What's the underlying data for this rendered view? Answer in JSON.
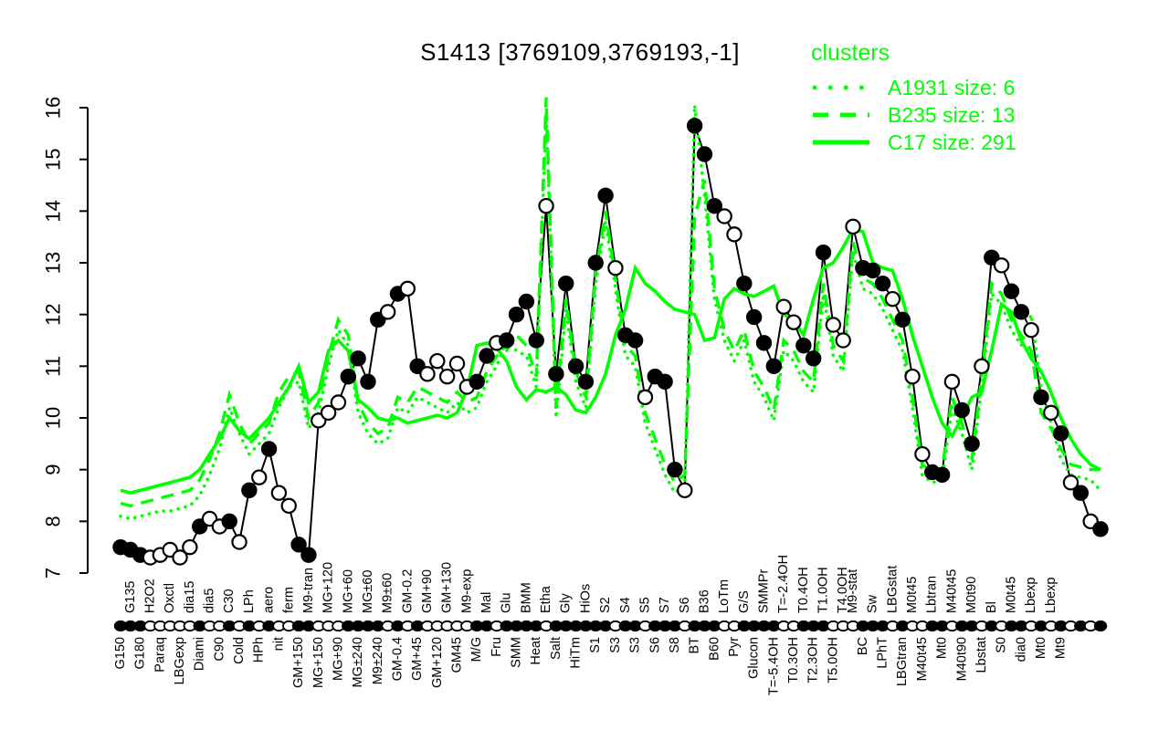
{
  "title": "S1413 [3769109,3769193,-1]",
  "colors": {
    "cluster_green": "#00FF00",
    "series_black": "#000000",
    "background": "#FFFFFF"
  },
  "legend": {
    "title": "clusters",
    "entries": [
      {
        "label": "A1931 size: 6",
        "line_style": "dotted"
      },
      {
        "label": "B235 size: 13",
        "line_style": "dashed"
      },
      {
        "label": "C17 size: 291",
        "line_style": "solid"
      }
    ]
  },
  "y_axis": {
    "min": 7,
    "max": 16,
    "ticks": [
      7,
      8,
      9,
      10,
      11,
      12,
      13,
      14,
      15,
      16
    ]
  },
  "chart_data": {
    "type": "line",
    "title": "S1413 [3769109,3769193,-1]",
    "ylim": [
      7,
      16.3
    ],
    "grid": false,
    "legend_position": "top-right",
    "categories": {
      "labels": [
        "G150",
        "G135",
        "G180",
        "H2O2",
        "Paraq",
        "Oxctl",
        "LBGexp",
        "dia15",
        "Diami",
        "dia5",
        "C90",
        "C30",
        "Cold",
        "LPh",
        "HPh",
        "aero",
        "nit",
        "ferm",
        "GM+150",
        "M9-tran",
        "MG+150",
        "MG+120",
        "MG+90",
        "MG+60",
        "MG±240",
        "MG±60",
        "M9±240",
        "M9±60",
        "GM-0.4",
        "GM-0.2",
        "GM+45",
        "GM+90",
        "GM+120",
        "GM+130",
        "GM45",
        "M9-exp",
        "M/G",
        "Mal",
        "Fru",
        "Glu",
        "SMM",
        "BMM",
        "Heat",
        "Etha",
        "Salt",
        "Gly",
        "HiTm",
        "HiOs",
        "S1",
        "S2",
        "S3",
        "S4",
        "S3",
        "S5",
        "S6",
        "S7",
        "S8",
        "S6",
        "BT",
        "B36",
        "B60",
        "LoTm",
        "Pyr",
        "G/S",
        "Glucon",
        "SMMPr",
        "T=-5.4OH",
        "T=-2.4OH",
        "T0.3OH",
        "T0.4OH",
        "T2.3OH",
        "T1.0OH",
        "T5.0OH",
        "T4.0OH",
        "M9-stat",
        "BC",
        "Sw",
        "LPhT",
        "LBGstat",
        "LBGtran",
        "M0t45",
        "M40t45",
        "Lbtran",
        "Mt0",
        "M40t45",
        "M40t90",
        "M0t90",
        "Lbstat",
        "Bl",
        "S0",
        "M0t45",
        "dia0",
        "Lbexp",
        "Mt0",
        "Lbexp",
        "Mt9",
        "",
        "",
        "",
        ""
      ],
      "label_row": [
        "b",
        "a",
        "b",
        "a",
        "b",
        "a",
        "b",
        "a",
        "b",
        "a",
        "b",
        "a",
        "b",
        "a",
        "b",
        "a",
        "b",
        "a",
        "b",
        "a",
        "b",
        "a",
        "b",
        "a",
        "b",
        "a",
        "b",
        "a",
        "b",
        "a",
        "b",
        "a",
        "b",
        "a",
        "b",
        "a",
        "b",
        "a",
        "b",
        "a",
        "b",
        "a",
        "b",
        "a",
        "b",
        "a",
        "b",
        "a",
        "b",
        "a",
        "b",
        "a",
        "b",
        "a",
        "b",
        "a",
        "b",
        "a",
        "b",
        "a",
        "b",
        "a",
        "b",
        "a",
        "b",
        "a",
        "b",
        "a",
        "b",
        "a",
        "b",
        "a",
        "b",
        "a",
        "a",
        "b",
        "a",
        "b",
        "a",
        "b",
        "a",
        "b",
        "a",
        "b",
        "a",
        "b",
        "a",
        "b",
        "a",
        "b",
        "a",
        "b",
        "a",
        "b",
        "a",
        "b",
        "a",
        "b",
        "a",
        "b"
      ]
    },
    "series": [
      {
        "name": "S1413",
        "color": "#000000",
        "style": "solid-with-markers",
        "markers": [
          "f",
          "f",
          "f",
          "o",
          "o",
          "o",
          "o",
          "o",
          "f",
          "o",
          "o",
          "f",
          "o",
          "f",
          "o",
          "f",
          "o",
          "o",
          "f",
          "f",
          "o",
          "o",
          "o",
          "f",
          "f",
          "f",
          "f",
          "o",
          "f",
          "o",
          "f",
          "o",
          "o",
          "o",
          "o",
          "o",
          "f",
          "f",
          "o",
          "f",
          "f",
          "f",
          "f",
          "o",
          "f",
          "f",
          "f",
          "f",
          "f",
          "f",
          "o",
          "f",
          "f",
          "o",
          "f",
          "f",
          "f",
          "o",
          "f",
          "f",
          "f",
          "o",
          "o",
          "f",
          "f",
          "f",
          "f",
          "o",
          "o",
          "f",
          "f",
          "f",
          "o",
          "o",
          "o",
          "f",
          "f",
          "f",
          "o",
          "f",
          "o",
          "o",
          "f",
          "f",
          "o",
          "f",
          "f",
          "o",
          "f",
          "o",
          "f",
          "f",
          "o",
          "f",
          "o",
          "f",
          "o",
          "f",
          "o",
          "f"
        ],
        "values": [
          7.5,
          7.45,
          7.35,
          7.3,
          7.35,
          7.45,
          7.3,
          7.5,
          7.9,
          8.05,
          7.9,
          8.0,
          7.6,
          8.6,
          8.85,
          9.4,
          8.55,
          8.3,
          7.55,
          7.35,
          9.95,
          10.1,
          10.3,
          10.8,
          11.15,
          10.7,
          11.9,
          12.05,
          12.4,
          12.5,
          11.0,
          10.85,
          11.1,
          10.8,
          11.05,
          10.6,
          10.7,
          11.2,
          11.45,
          11.5,
          12.0,
          12.25,
          11.5,
          14.1,
          10.85,
          12.6,
          11.0,
          10.7,
          13.0,
          14.3,
          12.9,
          11.6,
          11.5,
          10.4,
          10.8,
          10.7,
          9.0,
          8.6,
          15.65,
          15.1,
          14.1,
          13.9,
          13.55,
          12.6,
          11.95,
          11.45,
          11.0,
          12.15,
          11.85,
          11.4,
          11.15,
          13.2,
          11.8,
          11.5,
          13.7,
          12.9,
          12.85,
          12.6,
          12.3,
          11.9,
          10.8,
          9.3,
          8.95,
          8.9,
          10.7,
          10.15,
          9.5,
          11.0,
          13.1,
          12.95,
          12.45,
          12.05,
          11.7,
          10.4,
          10.1,
          9.7,
          8.75,
          8.55,
          8.0,
          7.85
        ]
      },
      {
        "name": "A1931 size: 6",
        "color": "#00FF00",
        "style": "dotted",
        "values": [
          8.1,
          8.05,
          8.1,
          8.15,
          8.2,
          8.2,
          8.25,
          8.3,
          8.5,
          8.9,
          9.4,
          10.2,
          9.7,
          9.3,
          9.5,
          9.7,
          10.2,
          10.6,
          10.7,
          9.8,
          10.1,
          11.0,
          11.7,
          11.4,
          10.1,
          9.7,
          9.5,
          9.6,
          10.2,
          10.1,
          10.4,
          10.3,
          10.2,
          10.1,
          10.3,
          10.1,
          10.2,
          10.7,
          11.0,
          11.5,
          11.3,
          11.2,
          10.6,
          15.9,
          10.0,
          12.1,
          10.7,
          10.2,
          12.6,
          13.8,
          12.5,
          11.2,
          11.0,
          9.9,
          9.4,
          8.9,
          8.55,
          8.7,
          16.05,
          14.3,
          12.3,
          11.5,
          11.1,
          11.5,
          10.7,
          10.4,
          9.95,
          11.3,
          11.1,
          10.7,
          10.5,
          12.4,
          11.2,
          10.9,
          13.2,
          12.5,
          12.4,
          12.1,
          11.7,
          11.3,
          10.2,
          8.9,
          8.75,
          8.8,
          10.2,
          9.7,
          9.0,
          10.6,
          12.4,
          12.2,
          11.7,
          11.4,
          12.0,
          10.6,
          9.9,
          9.2,
          8.9,
          8.85,
          8.8,
          8.6
        ]
      },
      {
        "name": "B235 size: 13",
        "color": "#00FF00",
        "style": "dashed",
        "values": [
          8.35,
          8.3,
          8.35,
          8.4,
          8.45,
          8.5,
          8.55,
          8.6,
          8.8,
          9.2,
          9.7,
          10.45,
          9.9,
          9.5,
          9.7,
          9.9,
          10.5,
          10.8,
          10.9,
          10.0,
          10.3,
          11.2,
          11.9,
          11.6,
          10.3,
          9.9,
          9.7,
          9.8,
          10.4,
          10.3,
          10.6,
          10.5,
          10.4,
          10.3,
          10.5,
          10.3,
          10.4,
          10.9,
          11.2,
          11.3,
          11.6,
          11.4,
          10.8,
          16.2,
          10.2,
          12.3,
          10.9,
          10.4,
          12.8,
          14.0,
          12.7,
          11.4,
          11.2,
          10.1,
          9.6,
          9.1,
          8.75,
          8.9,
          13.9,
          14.6,
          12.5,
          11.7,
          11.3,
          11.7,
          10.9,
          10.6,
          10.15,
          11.5,
          11.3,
          10.9,
          10.7,
          12.6,
          11.4,
          11.1,
          13.4,
          12.7,
          12.6,
          12.3,
          11.9,
          11.5,
          10.4,
          9.1,
          8.95,
          9.0,
          10.4,
          9.9,
          9.2,
          10.8,
          12.6,
          12.4,
          11.9,
          11.6,
          11.3,
          10.1,
          9.8,
          9.4,
          9.1,
          9.05,
          9.0,
          9.0
        ]
      },
      {
        "name": "C17 size: 291",
        "color": "#00FF00",
        "style": "solid",
        "values": [
          8.6,
          8.55,
          8.6,
          8.65,
          8.7,
          8.75,
          8.8,
          8.85,
          9.0,
          9.3,
          9.6,
          10.0,
          9.75,
          9.6,
          9.8,
          10.0,
          10.3,
          10.6,
          11.0,
          10.3,
          10.5,
          11.3,
          11.5,
          11.3,
          10.35,
          10.2,
          10.0,
          9.95,
          10.0,
          9.9,
          9.95,
          10.0,
          10.05,
          10.0,
          10.1,
          10.55,
          11.4,
          11.45,
          11.35,
          11.1,
          10.6,
          10.35,
          10.55,
          10.5,
          10.6,
          10.45,
          10.15,
          10.1,
          10.4,
          10.85,
          11.6,
          12.1,
          12.9,
          12.6,
          12.45,
          12.25,
          12.1,
          12.05,
          12.0,
          11.5,
          11.55,
          12.3,
          12.5,
          12.4,
          12.35,
          12.45,
          12.55,
          12.0,
          11.9,
          11.6,
          12.3,
          12.9,
          13.0,
          13.3,
          13.65,
          13.6,
          13.0,
          12.9,
          12.85,
          12.3,
          11.6,
          11.0,
          10.4,
          9.9,
          9.65,
          10.0,
          10.4,
          10.5,
          11.3,
          12.2,
          12.05,
          11.5,
          11.15,
          10.9,
          10.5,
          10.0,
          9.6,
          9.3,
          9.1,
          9.0
        ]
      }
    ]
  }
}
